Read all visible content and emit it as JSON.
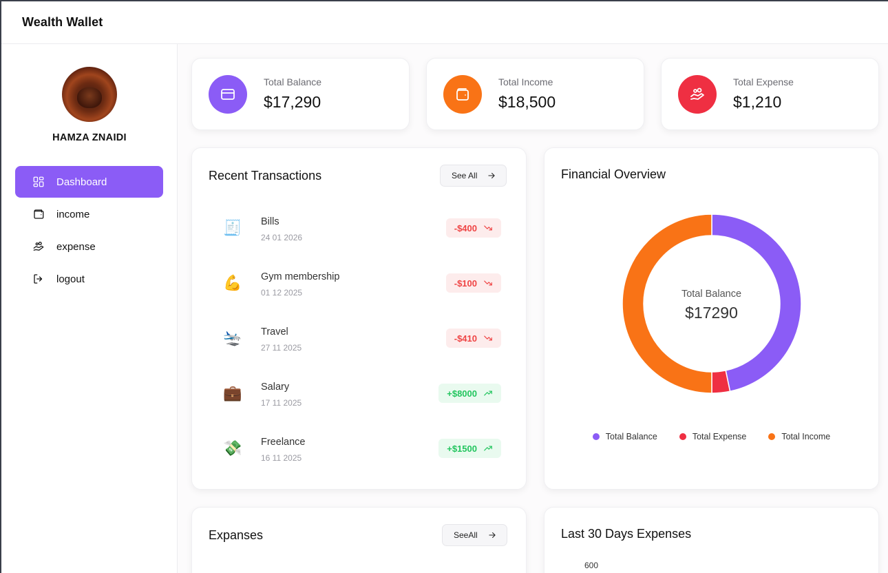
{
  "app": {
    "title": "Wealth Wallet"
  },
  "user": {
    "name": "HAMZA ZNAIDI"
  },
  "nav": [
    {
      "label": "Dashboard",
      "icon": "dashboard-icon",
      "active": true
    },
    {
      "label": "income",
      "icon": "wallet-icon",
      "active": false
    },
    {
      "label": "expense",
      "icon": "hand-coins-icon",
      "active": false
    },
    {
      "label": "logout",
      "icon": "logout-icon",
      "active": false
    }
  ],
  "stats": [
    {
      "label": "Total Balance",
      "value": "$17,290",
      "icon": "card-icon",
      "color": "#8b5cf6"
    },
    {
      "label": "Total Income",
      "value": "$18,500",
      "icon": "wallet-icon",
      "color": "#f97316"
    },
    {
      "label": "Total Expense",
      "value": "$1,210",
      "icon": "hand-coins-icon",
      "color": "#ef2f42"
    }
  ],
  "recent": {
    "title": "Recent Transactions",
    "see_all": "See All",
    "items": [
      {
        "name": "Bills",
        "date": "24 01 2026",
        "amount": "-$400",
        "type": "expense",
        "emoji": "🧾"
      },
      {
        "name": "Gym membership",
        "date": "01 12 2025",
        "amount": "-$100",
        "type": "expense",
        "emoji": "💪"
      },
      {
        "name": "Travel",
        "date": "27 11 2025",
        "amount": "-$410",
        "type": "expense",
        "emoji": "🛬"
      },
      {
        "name": "Salary",
        "date": "17 11 2025",
        "amount": "+$8000",
        "type": "income",
        "emoji": "💼"
      },
      {
        "name": "Freelance",
        "date": "16 11 2025",
        "amount": "+$1500",
        "type": "income",
        "emoji": "💸"
      }
    ]
  },
  "overview": {
    "title": "Financial Overview",
    "center_label": "Total Balance",
    "center_value": "$17290"
  },
  "chart_data": {
    "type": "pie",
    "title": "Financial Overview",
    "categories": [
      "Total Balance",
      "Total Expense",
      "Total Income"
    ],
    "values": [
      17290,
      1210,
      18500
    ],
    "colors": [
      "#8b5cf6",
      "#ef2f42",
      "#f97316"
    ],
    "legend": "bottom"
  },
  "expenses_card": {
    "title": "Expanses",
    "see_all": "SeeAll"
  },
  "last30": {
    "title": "Last 30 Days Expenses",
    "y_tick": "600"
  }
}
